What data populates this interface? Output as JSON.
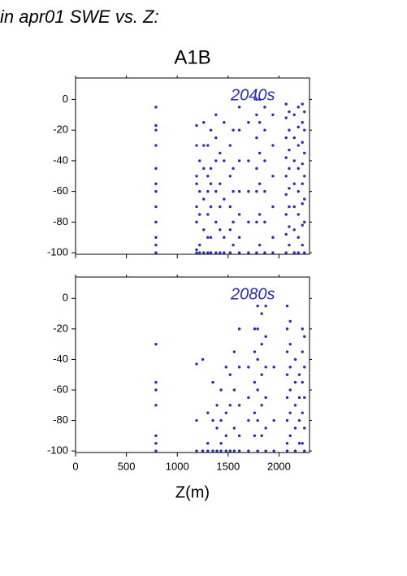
{
  "figure": {
    "title": "in apr01 SWE vs. Z:",
    "subtitle": "A1B",
    "xlabel": "Z(m)"
  },
  "chart_data": [
    {
      "type": "scatter",
      "annotation": "2040s",
      "color": "#2a2ab4",
      "xlim": [
        0,
        2300
      ],
      "ylim": [
        -101,
        14
      ],
      "xticks": [
        0,
        500,
        1000,
        1500,
        2000
      ],
      "yticks": [
        0,
        -20,
        -40,
        -60,
        -80,
        -100
      ],
      "x_tick_labels": false,
      "x": [
        790,
        790,
        790,
        790,
        790,
        790,
        790,
        790,
        790,
        790,
        790,
        790,
        1190,
        1190,
        1190,
        1190,
        1190,
        1190,
        1190,
        1190,
        1220,
        1220,
        1220,
        1220,
        1220,
        1260,
        1260,
        1260,
        1260,
        1260,
        1260,
        1300,
        1300,
        1300,
        1300,
        1300,
        1300,
        1330,
        1330,
        1330,
        1330,
        1330,
        1330,
        1380,
        1380,
        1380,
        1380,
        1380,
        1380,
        1420,
        1420,
        1420,
        1420,
        1420,
        1460,
        1460,
        1460,
        1460,
        1460,
        1520,
        1520,
        1520,
        1520,
        1520,
        1550,
        1550,
        1550,
        1550,
        1550,
        1610,
        1610,
        1610,
        1610,
        1610,
        1610,
        1610,
        1700,
        1700,
        1700,
        1700,
        1700,
        1780,
        1780,
        1780,
        1780,
        1780,
        1780,
        1780,
        1810,
        1810,
        1810,
        1810,
        1810,
        1810,
        1860,
        1860,
        1860,
        1860,
        1860,
        1860,
        1940,
        1940,
        1940,
        1940,
        1940,
        1940,
        2070,
        2070,
        2070,
        2070,
        2070,
        2070,
        2070,
        2070,
        2070,
        2100,
        2100,
        2100,
        2100,
        2100,
        2100,
        2100,
        2100,
        2150,
        2150,
        2150,
        2150,
        2150,
        2150,
        2150,
        2190,
        2190,
        2190,
        2190,
        2190,
        2190,
        2190,
        2190,
        2230,
        2230,
        2230,
        2230,
        2230,
        2230,
        2230,
        2230,
        2250,
        2250,
        2250,
        2250,
        2250,
        2250,
        2250
      ],
      "values": [
        -5,
        -17,
        -20,
        -30,
        -45,
        -55,
        -60,
        -70,
        -80,
        -90,
        -95,
        -100,
        -17,
        -30,
        -50,
        -55,
        -70,
        -80,
        -98,
        -100,
        -40,
        -60,
        -75,
        -95,
        -100,
        -15,
        -30,
        -45,
        -65,
        -85,
        -100,
        -30,
        -50,
        -60,
        -75,
        -90,
        -100,
        -20,
        -45,
        -55,
        -70,
        -90,
        -100,
        -10,
        -25,
        -40,
        -60,
        -80,
        -100,
        -35,
        -55,
        -70,
        -85,
        -100,
        -15,
        -40,
        -65,
        -90,
        -100,
        -30,
        -50,
        -70,
        -85,
        -100,
        -20,
        -45,
        -60,
        -80,
        -95,
        -5,
        -20,
        -40,
        -60,
        -75,
        -90,
        -100,
        -15,
        -40,
        -60,
        -80,
        -100,
        0,
        -10,
        -25,
        -45,
        -60,
        -80,
        -100,
        0,
        -15,
        -35,
        -55,
        -75,
        -95,
        -5,
        -20,
        -40,
        -60,
        -80,
        -100,
        -10,
        -30,
        -50,
        -70,
        -90,
        -100,
        -3,
        -12,
        -25,
        -38,
        -50,
        -62,
        -75,
        -88,
        -100,
        -8,
        -20,
        -33,
        -45,
        -58,
        -70,
        -83,
        -95,
        -10,
        -25,
        -40,
        -55,
        -70,
        -85,
        -100,
        -5,
        -18,
        -30,
        -45,
        -60,
        -75,
        -90,
        -100,
        -3,
        -15,
        -28,
        -42,
        -55,
        -68,
        -82,
        -95,
        -8,
        -20,
        -35,
        -50,
        -65,
        -80,
        -100
      ]
    },
    {
      "type": "scatter",
      "annotation": "2080s",
      "color": "#2a2ab4",
      "xlim": [
        0,
        2300
      ],
      "ylim": [
        -101,
        14
      ],
      "xticks": [
        0,
        500,
        1000,
        1500,
        2000
      ],
      "yticks": [
        0,
        -20,
        -40,
        -60,
        -80,
        -100
      ],
      "x_tick_labels": true,
      "x": [
        790,
        790,
        790,
        790,
        790,
        790,
        790,
        1190,
        1190,
        1190,
        1250,
        1250,
        1300,
        1300,
        1300,
        1350,
        1350,
        1350,
        1390,
        1390,
        1390,
        1430,
        1430,
        1430,
        1430,
        1480,
        1480,
        1480,
        1480,
        1520,
        1520,
        1520,
        1560,
        1560,
        1560,
        1560,
        1610,
        1610,
        1610,
        1610,
        1610,
        1700,
        1700,
        1700,
        1700,
        1760,
        1760,
        1760,
        1760,
        1760,
        1790,
        1790,
        1790,
        1790,
        1790,
        1790,
        1830,
        1830,
        1830,
        1830,
        1830,
        1870,
        1870,
        1870,
        1870,
        1870,
        1870,
        1950,
        1950,
        1950,
        2080,
        2080,
        2080,
        2080,
        2080,
        2080,
        2080,
        2080,
        2110,
        2110,
        2110,
        2110,
        2110,
        2110,
        2160,
        2160,
        2160,
        2160,
        2160,
        2200,
        2200,
        2200,
        2200,
        2230,
        2230,
        2230,
        2230,
        2230,
        2250,
        2250,
        2250,
        2250,
        2250
      ],
      "values": [
        -30,
        -55,
        -60,
        -70,
        -90,
        -95,
        -100,
        -43,
        -80,
        -100,
        -40,
        -100,
        -75,
        -95,
        -100,
        -55,
        -80,
        -100,
        -70,
        -85,
        -100,
        -60,
        -80,
        -95,
        -100,
        -45,
        -75,
        -90,
        -100,
        -50,
        -70,
        -100,
        -35,
        -60,
        -85,
        -100,
        -20,
        -45,
        -70,
        -90,
        -100,
        -45,
        -65,
        -80,
        -100,
        -20,
        -35,
        -55,
        -75,
        -90,
        -5,
        -20,
        -40,
        -60,
        -80,
        -100,
        -10,
        -30,
        -50,
        -70,
        -90,
        -5,
        -25,
        -45,
        -65,
        -85,
        -100,
        -45,
        -80,
        -100,
        -5,
        -20,
        -35,
        -50,
        -65,
        -80,
        -95,
        -100,
        -15,
        -30,
        -45,
        -60,
        -75,
        -90,
        -40,
        -55,
        -70,
        -85,
        -100,
        -50,
        -65,
        -80,
        -95,
        -20,
        -35,
        -55,
        -75,
        -95,
        -25,
        -45,
        -65,
        -85,
        -100
      ]
    }
  ]
}
